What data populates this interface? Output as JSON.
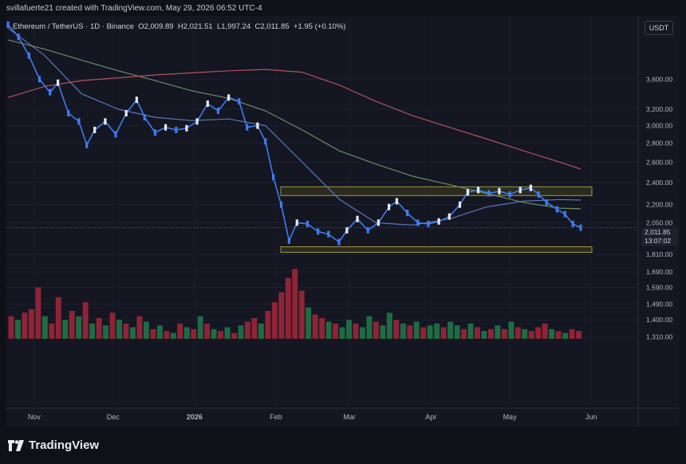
{
  "header": {
    "credit": "svillafuerte21 created with TradingView.com, May 29, 2026 06:52 UTC-4"
  },
  "legend": {
    "symbol": "Ethereum / TetherUS · 1D · Binance",
    "open": "O2,009.89",
    "high": "H2,021.51",
    "low": "L1,997.24",
    "close": "C2,011.85",
    "change": "+1.95 (+0.10%)"
  },
  "currency_button": "USDT",
  "last_price": {
    "value": "2,011.85",
    "countdown": "13:07:02"
  },
  "footer": {
    "brand": "TradingView"
  },
  "colors": {
    "up": "#3d7df0",
    "down": "#3d7df0",
    "vol_up": "#1f6b45",
    "vol_down": "#8e2436",
    "ma_fast": "#5a78b8",
    "ma_mid": "#6b8c69",
    "ma_slow": "#b0545e",
    "zone": "#9c9a3f"
  },
  "chart_data": {
    "type": "candlestick",
    "y_scale": "log",
    "ylim": [
      1240,
      4500
    ],
    "y_ticks": [
      "3,600.00",
      "3,200.00",
      "3,000.00",
      "2,800.00",
      "2,600.00",
      "2,400.00",
      "2,200.00",
      "2,050.00",
      "1,810.00",
      "1,690.00",
      "1,590.00",
      "1,490.00",
      "1,400.00",
      "1,310.00"
    ],
    "x_ticks": [
      "Nov",
      "Dec",
      "2026",
      "Feb",
      "Mar",
      "Apr",
      "May",
      "Jun"
    ],
    "series": [
      {
        "name": "ETHUSDT",
        "points": [
          [
            "Oct 22",
            4460
          ],
          [
            "Oct 26",
            4250
          ],
          [
            "Oct 30",
            3950
          ],
          [
            "Nov 3",
            3600
          ],
          [
            "Nov 7",
            3420
          ],
          [
            "Nov 10",
            3550
          ],
          [
            "Nov 14",
            3150
          ],
          [
            "Nov 18",
            3050
          ],
          [
            "Nov 21",
            2780
          ],
          [
            "Nov 24",
            2950
          ],
          [
            "Nov 28",
            3050
          ],
          [
            "Dec 2",
            2900
          ],
          [
            "Dec 6",
            3150
          ],
          [
            "Dec 10",
            3320
          ],
          [
            "Dec 13",
            3100
          ],
          [
            "Dec 17",
            2920
          ],
          [
            "Dec 21",
            2980
          ],
          [
            "Dec 25",
            2950
          ],
          [
            "Dec 29",
            2970
          ],
          [
            "Jan 2",
            3050
          ],
          [
            "Jan 6",
            3270
          ],
          [
            "Jan 10",
            3180
          ],
          [
            "Jan 14",
            3350
          ],
          [
            "Jan 18",
            3300
          ],
          [
            "Jan 21",
            2980
          ],
          [
            "Jan 25",
            3000
          ],
          [
            "Jan 28",
            2820
          ],
          [
            "Jan 31",
            2450
          ],
          [
            "Feb 3",
            2200
          ],
          [
            "Feb 6",
            1910
          ],
          [
            "Feb 9",
            2050
          ],
          [
            "Feb 13",
            2040
          ],
          [
            "Feb 17",
            1980
          ],
          [
            "Feb 21",
            1960
          ],
          [
            "Feb 25",
            1900
          ],
          [
            "Feb 28",
            1990
          ],
          [
            "Mar 4",
            2080
          ],
          [
            "Mar 8",
            1990
          ],
          [
            "Mar 12",
            2050
          ],
          [
            "Mar 16",
            2180
          ],
          [
            "Mar 19",
            2230
          ],
          [
            "Mar 23",
            2130
          ],
          [
            "Mar 27",
            2050
          ],
          [
            "Mar 31",
            2040
          ],
          [
            "Apr 4",
            2060
          ],
          [
            "Apr 8",
            2100
          ],
          [
            "Apr 12",
            2200
          ],
          [
            "Apr 15",
            2310
          ],
          [
            "Apr 19",
            2330
          ],
          [
            "Apr 23",
            2300
          ],
          [
            "Apr 27",
            2320
          ],
          [
            "May 1",
            2290
          ],
          [
            "May 5",
            2330
          ],
          [
            "May 9",
            2350
          ],
          [
            "May 12",
            2290
          ],
          [
            "May 15",
            2220
          ],
          [
            "May 19",
            2160
          ],
          [
            "May 22",
            2120
          ],
          [
            "May 25",
            2040
          ],
          [
            "May 28",
            2010
          ]
        ]
      },
      {
        "name": "MA fast",
        "points": [
          [
            "Oct 22",
            4400
          ],
          [
            "Nov 5",
            3950
          ],
          [
            "Nov 19",
            3400
          ],
          [
            "Dec 3",
            3200
          ],
          [
            "Dec 17",
            3100
          ],
          [
            "Dec 31",
            3060
          ],
          [
            "Jan 14",
            3080
          ],
          [
            "Jan 28",
            3000
          ],
          [
            "Feb 11",
            2600
          ],
          [
            "Feb 25",
            2250
          ],
          [
            "Mar 11",
            2050
          ],
          [
            "Mar 25",
            2030
          ],
          [
            "Apr 8",
            2080
          ],
          [
            "Apr 22",
            2180
          ],
          [
            "May 6",
            2230
          ],
          [
            "May 20",
            2245
          ],
          [
            "May 28",
            2240
          ]
        ]
      },
      {
        "name": "MA mid",
        "points": [
          [
            "Oct 22",
            4200
          ],
          [
            "Nov 5",
            4050
          ],
          [
            "Nov 19",
            3880
          ],
          [
            "Dec 3",
            3720
          ],
          [
            "Dec 17",
            3580
          ],
          [
            "Dec 31",
            3440
          ],
          [
            "Jan 14",
            3340
          ],
          [
            "Jan 28",
            3180
          ],
          [
            "Feb 11",
            2950
          ],
          [
            "Feb 25",
            2720
          ],
          [
            "Mar 11",
            2580
          ],
          [
            "Mar 25",
            2460
          ],
          [
            "Apr 8",
            2380
          ],
          [
            "Apr 22",
            2300
          ],
          [
            "May 6",
            2220
          ],
          [
            "May 20",
            2170
          ],
          [
            "May 28",
            2165
          ]
        ]
      },
      {
        "name": "MA slow",
        "points": [
          [
            "Oct 22",
            3350
          ],
          [
            "Nov 5",
            3500
          ],
          [
            "Nov 19",
            3580
          ],
          [
            "Dec 3",
            3620
          ],
          [
            "Dec 17",
            3660
          ],
          [
            "Dec 31",
            3690
          ],
          [
            "Jan 14",
            3720
          ],
          [
            "Jan 28",
            3740
          ],
          [
            "Feb 11",
            3700
          ],
          [
            "Feb 25",
            3520
          ],
          [
            "Mar 11",
            3300
          ],
          [
            "Mar 25",
            3120
          ],
          [
            "Apr 8",
            2980
          ],
          [
            "Apr 22",
            2850
          ],
          [
            "May 6",
            2720
          ],
          [
            "May 20",
            2600
          ],
          [
            "May 28",
            2530
          ]
        ]
      }
    ],
    "zones": [
      {
        "from": 2280,
        "to": 2360
      },
      {
        "from": 1825,
        "to": 1865
      }
    ],
    "volume": {
      "baseline": 1300,
      "bars": [
        [
          1420,
          "d"
        ],
        [
          1400,
          "u"
        ],
        [
          1440,
          "d"
        ],
        [
          1460,
          "d"
        ],
        [
          1590,
          "d"
        ],
        [
          1420,
          "u"
        ],
        [
          1380,
          "d"
        ],
        [
          1530,
          "d"
        ],
        [
          1400,
          "u"
        ],
        [
          1450,
          "d"
        ],
        [
          1420,
          "u"
        ],
        [
          1500,
          "d"
        ],
        [
          1380,
          "u"
        ],
        [
          1410,
          "d"
        ],
        [
          1370,
          "u"
        ],
        [
          1440,
          "d"
        ],
        [
          1400,
          "u"
        ],
        [
          1380,
          "d"
        ],
        [
          1360,
          "u"
        ],
        [
          1420,
          "d"
        ],
        [
          1390,
          "u"
        ],
        [
          1350,
          "d"
        ],
        [
          1370,
          "u"
        ],
        [
          1340,
          "d"
        ],
        [
          1330,
          "u"
        ],
        [
          1380,
          "d"
        ],
        [
          1360,
          "u"
        ],
        [
          1350,
          "d"
        ],
        [
          1420,
          "u"
        ],
        [
          1380,
          "d"
        ],
        [
          1350,
          "u"
        ],
        [
          1340,
          "d"
        ],
        [
          1360,
          "u"
        ],
        [
          1330,
          "d"
        ],
        [
          1370,
          "u"
        ],
        [
          1390,
          "d"
        ],
        [
          1410,
          "d"
        ],
        [
          1380,
          "u"
        ],
        [
          1450,
          "d"
        ],
        [
          1500,
          "d"
        ],
        [
          1560,
          "d"
        ],
        [
          1650,
          "d"
        ],
        [
          1710,
          "d"
        ],
        [
          1570,
          "d"
        ],
        [
          1470,
          "u"
        ],
        [
          1430,
          "d"
        ],
        [
          1410,
          "d"
        ],
        [
          1390,
          "u"
        ],
        [
          1380,
          "d"
        ],
        [
          1360,
          "u"
        ],
        [
          1400,
          "u"
        ],
        [
          1380,
          "d"
        ],
        [
          1360,
          "u"
        ],
        [
          1420,
          "u"
        ],
        [
          1390,
          "d"
        ],
        [
          1370,
          "u"
        ],
        [
          1440,
          "u"
        ],
        [
          1400,
          "d"
        ],
        [
          1380,
          "u"
        ],
        [
          1370,
          "d"
        ],
        [
          1390,
          "u"
        ],
        [
          1360,
          "d"
        ],
        [
          1370,
          "u"
        ],
        [
          1380,
          "u"
        ],
        [
          1360,
          "d"
        ],
        [
          1390,
          "u"
        ],
        [
          1370,
          "u"
        ],
        [
          1350,
          "d"
        ],
        [
          1380,
          "u"
        ],
        [
          1360,
          "d"
        ],
        [
          1340,
          "u"
        ],
        [
          1350,
          "d"
        ],
        [
          1370,
          "u"
        ],
        [
          1350,
          "d"
        ],
        [
          1390,
          "u"
        ],
        [
          1360,
          "d"
        ],
        [
          1350,
          "u"
        ],
        [
          1340,
          "d"
        ],
        [
          1360,
          "d"
        ],
        [
          1380,
          "d"
        ],
        [
          1350,
          "u"
        ],
        [
          1340,
          "d"
        ],
        [
          1330,
          "u"
        ],
        [
          1350,
          "d"
        ],
        [
          1340,
          "d"
        ]
      ]
    }
  }
}
